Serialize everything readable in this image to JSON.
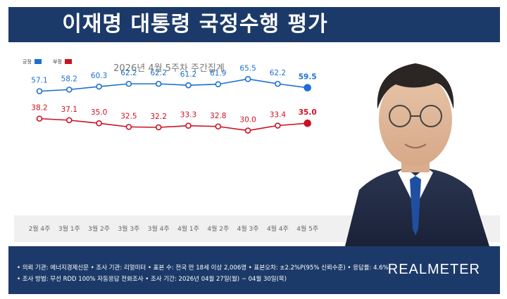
{
  "header": {
    "title": "이재명 대통령 국정수행 평가"
  },
  "chart_data": {
    "type": "line",
    "subtitle": "2026년 4월 5주차 주간집계",
    "categories": [
      "2월 4주",
      "3월 1주",
      "3월 2주",
      "3월 3주",
      "3월 4주",
      "4월 1주",
      "4월 2주",
      "4월 3주",
      "4월 4주",
      "4월 5주"
    ],
    "series": [
      {
        "name": "긍정",
        "color": "#1e6fd0",
        "values": [
          57.1,
          58.2,
          60.3,
          62.2,
          62.2,
          61.2,
          61.9,
          65.5,
          62.2,
          59.5
        ]
      },
      {
        "name": "부정",
        "color": "#cc1122",
        "values": [
          38.2,
          37.1,
          35.0,
          32.5,
          32.2,
          33.3,
          32.8,
          30.0,
          33.4,
          35.0
        ]
      }
    ],
    "value_labels": {
      "positive": [
        "57.1",
        "58.2",
        "60.3",
        "62.2",
        "62.2",
        "61.2",
        "61.9",
        "65.5",
        "62.2",
        "59.5"
      ],
      "negative": [
        "38.2",
        "37.1",
        "35.0",
        "32.5",
        "32.2",
        "33.3",
        "32.8",
        "30.0",
        "33.4",
        "35.0"
      ]
    },
    "legend_position": "top-left"
  },
  "footer": {
    "line1": "• 의뢰 기관: 에너지경제신문   • 조사 기관: 리얼미터   • 표본 수: 전국 만 18세 이상 2,006명   • 표본오차: ±2.2%P(95% 신뢰수준)   • 응답률: 4.6%",
    "line2": "• 조사 방법: 무선 RDD 100% 자동응답 전화조사   • 조사 기간: 2026년 04월 27일(월) ~ 04월 30일(목)",
    "brand": "REALMETER"
  }
}
